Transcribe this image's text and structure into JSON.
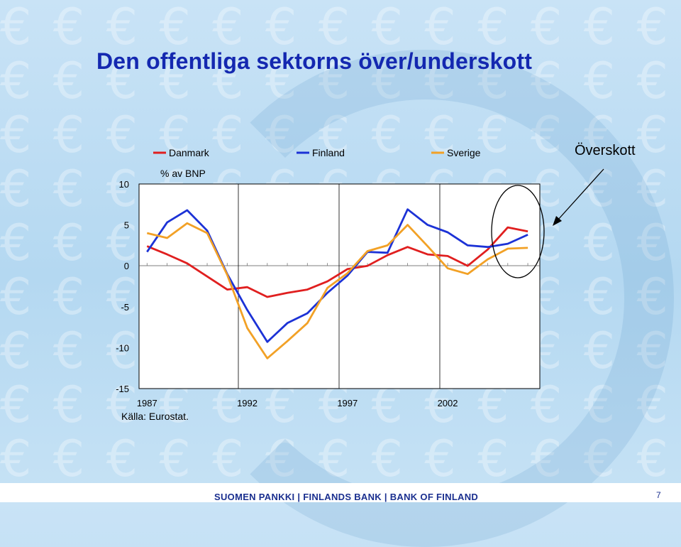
{
  "slide": {
    "title": "Den offentliga sektorns över/underskott",
    "footer": "SUOMEN PANKKI | FINLANDS BANK | BANK OF FINLAND",
    "page_number": "7",
    "source_note": "Källa: Eurostat.",
    "annotation": "Överskott"
  },
  "chart_data": {
    "type": "line",
    "ylabel": "% av BNP",
    "ylim": [
      -15,
      10
    ],
    "yticks": [
      10,
      5,
      0,
      -5,
      -10,
      -15
    ],
    "xlim": [
      1986.6,
      2006.6
    ],
    "xtick_labels": [
      "1987",
      "1992",
      "1997",
      "2002"
    ],
    "xtick_values": [
      1987,
      1992,
      1997,
      2002
    ],
    "grid": false,
    "legend": "top",
    "x": [
      1987,
      1988,
      1989,
      1990,
      1991,
      1992,
      1993,
      1994,
      1995,
      1996,
      1997,
      1998,
      1999,
      2000,
      2001,
      2002,
      2003,
      2004,
      2005,
      2006
    ],
    "series": [
      {
        "name": "Danmark",
        "color": "#e01f1f",
        "values": [
          2.4,
          1.4,
          0.3,
          -1.3,
          -2.9,
          -2.6,
          -3.8,
          -3.3,
          -2.9,
          -1.9,
          -0.4,
          0.0,
          1.3,
          2.3,
          1.4,
          1.2,
          0.0,
          2.0,
          4.7,
          4.2
        ]
      },
      {
        "name": "Finland",
        "color": "#1c32d6",
        "values": [
          1.7,
          5.3,
          6.8,
          4.3,
          -1.0,
          -5.4,
          -9.3,
          -7.0,
          -5.8,
          -3.3,
          -1.2,
          1.7,
          1.6,
          6.9,
          5.0,
          4.1,
          2.5,
          2.3,
          2.7,
          3.8
        ]
      },
      {
        "name": "Sverige",
        "color": "#f2a126",
        "values": [
          4.0,
          3.4,
          5.2,
          4.0,
          -1.1,
          -7.6,
          -11.3,
          -9.2,
          -7.0,
          -2.7,
          -0.9,
          1.8,
          2.5,
          5.0,
          2.4,
          -0.3,
          -1.0,
          0.8,
          2.1,
          2.2
        ]
      }
    ]
  }
}
